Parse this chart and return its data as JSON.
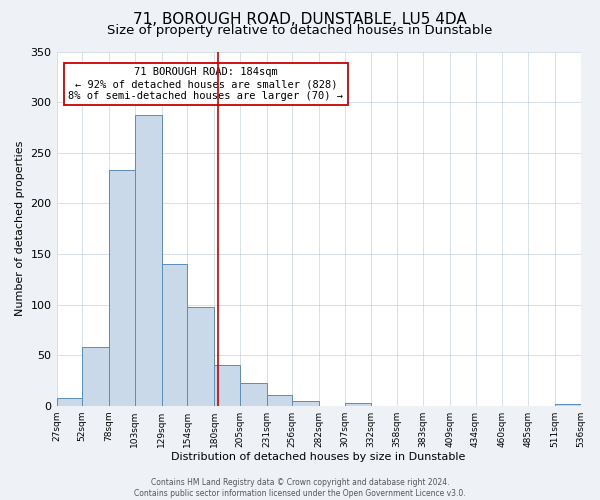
{
  "title": "71, BOROUGH ROAD, DUNSTABLE, LU5 4DA",
  "subtitle": "Size of property relative to detached houses in Dunstable",
  "xlabel": "Distribution of detached houses by size in Dunstable",
  "ylabel": "Number of detached properties",
  "bin_edges": [
    27,
    52,
    78,
    103,
    129,
    154,
    180,
    205,
    231,
    256,
    282,
    307,
    332,
    358,
    383,
    409,
    434,
    460,
    485,
    511,
    536
  ],
  "bin_counts": [
    8,
    58,
    233,
    287,
    140,
    98,
    40,
    22,
    11,
    5,
    0,
    3,
    0,
    0,
    0,
    0,
    0,
    0,
    0,
    2
  ],
  "property_size": 184,
  "bar_color": "#c9d9ea",
  "bar_edge_color": "#5b8db8",
  "vline_color": "#cc0000",
  "annotation_box_edge_color": "#cc0000",
  "annotation_title": "71 BOROUGH ROAD: 184sqm",
  "annotation_line1": "← 92% of detached houses are smaller (828)",
  "annotation_line2": "8% of semi-detached houses are larger (70) →",
  "ylim": [
    0,
    350
  ],
  "xlim": [
    27,
    536
  ],
  "footer1": "Contains HM Land Registry data © Crown copyright and database right 2024.",
  "footer2": "Contains public sector information licensed under the Open Government Licence v3.0.",
  "background_color": "#eef2f7",
  "plot_background_color": "#ffffff",
  "grid_color": "#c8d4e0",
  "title_fontsize": 11,
  "subtitle_fontsize": 9.5,
  "axis_label_fontsize": 8,
  "tick_label_fontsize": 6.5,
  "ytick_fontsize": 8,
  "annotation_fontsize": 7.5,
  "footer_fontsize": 5.5
}
